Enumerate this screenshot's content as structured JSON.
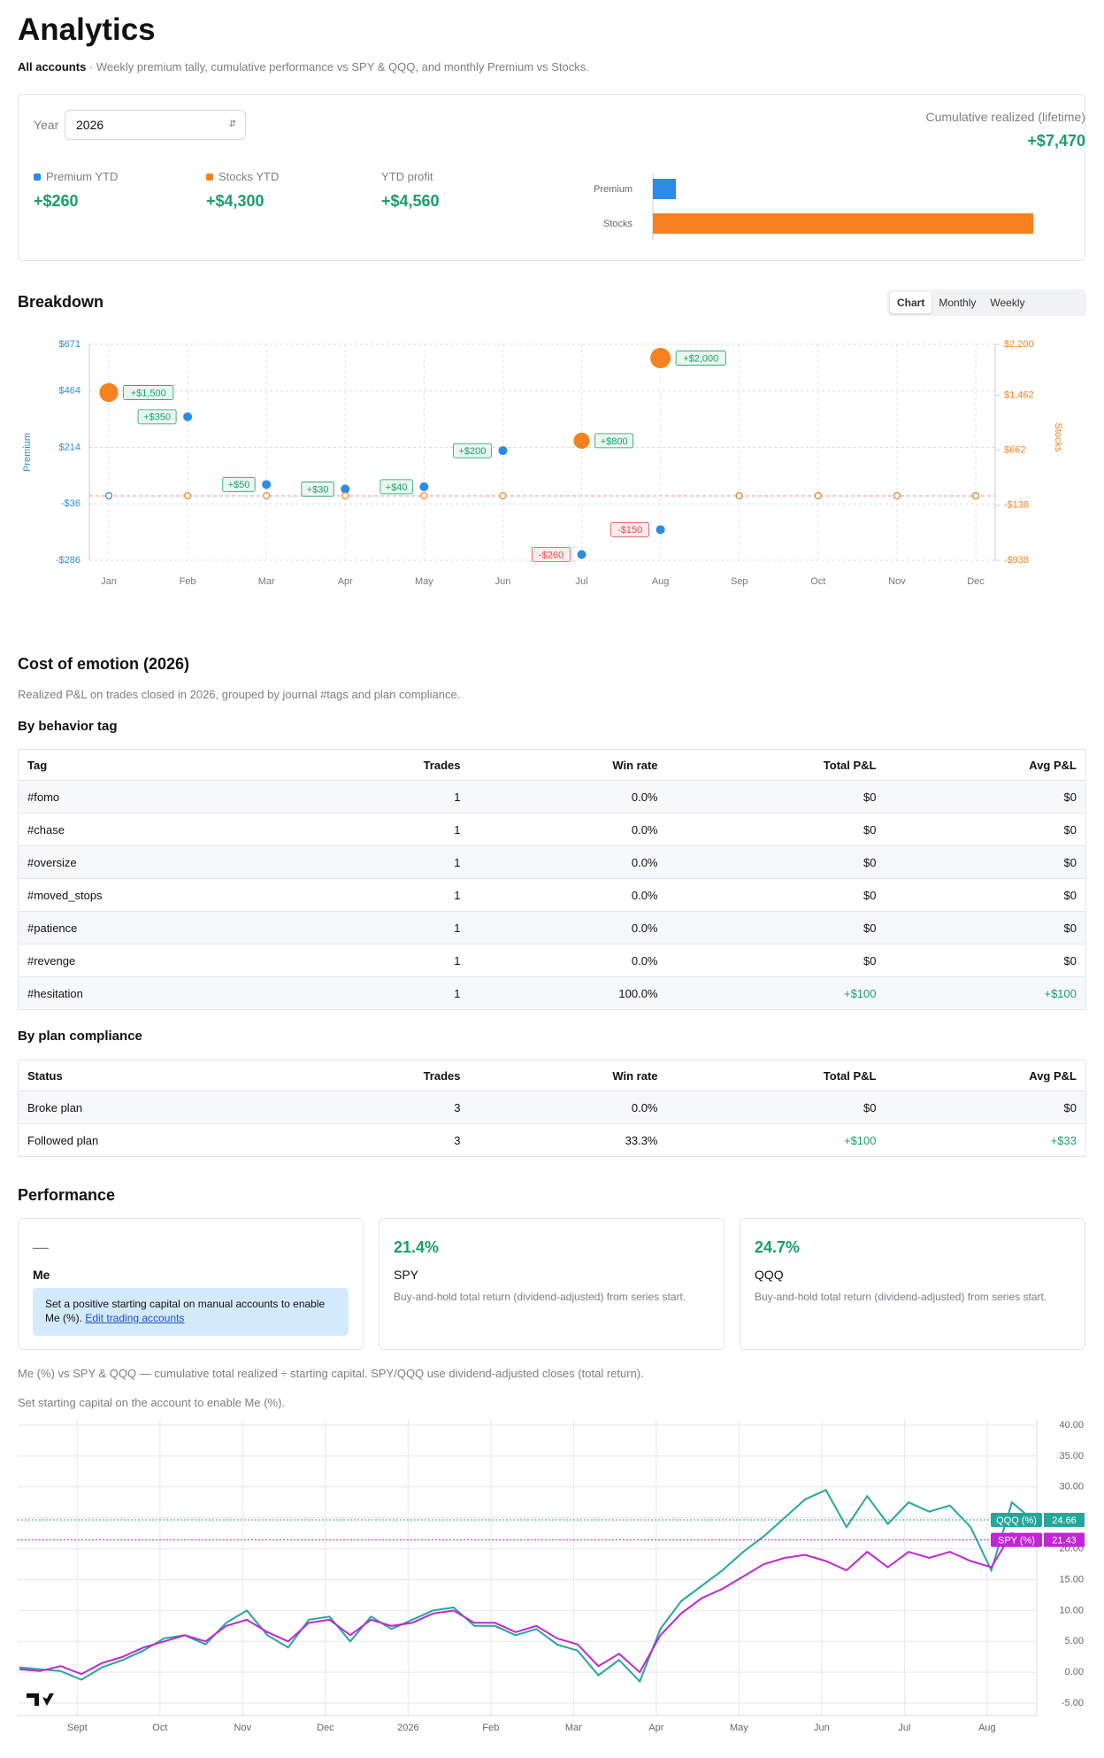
{
  "header": {
    "title": "Analytics",
    "scope": "All accounts",
    "description": "· Weekly premium tally, cumulative performance vs SPY & QQQ, and monthly Premium vs Stocks."
  },
  "summary": {
    "year_label": "Year",
    "year": "2026",
    "cumulative_label": "Cumulative realized (lifetime)",
    "cumulative": "+$7,470",
    "stats": [
      {
        "label": "Premium YTD",
        "value": "+$260",
        "color": "#2b8be6"
      },
      {
        "label": "Stocks YTD",
        "value": "+$4,300",
        "color": "#f5821f"
      },
      {
        "label": "YTD profit",
        "value": "+$4,560"
      }
    ],
    "chart": {
      "type": "bar",
      "orientation": "horizontal",
      "categories": [
        "Premium",
        "Stocks"
      ],
      "values": [
        260,
        4300
      ],
      "colors": [
        "#2b8be6",
        "#f5821f"
      ]
    }
  },
  "breakdown": {
    "title": "Breakdown",
    "tabs": [
      "Chart",
      "Monthly",
      "Weekly"
    ],
    "active_tab": 0,
    "chart": {
      "type": "scatter",
      "categories": [
        "Jan",
        "Feb",
        "Mar",
        "Apr",
        "May",
        "Jun",
        "Jul",
        "Aug",
        "Sep",
        "Oct",
        "Nov",
        "Dec"
      ],
      "series": [
        {
          "name": "Premium",
          "color": "#2b8be6",
          "values": [
            0,
            350,
            50,
            30,
            40,
            200,
            -260,
            -150,
            0,
            0,
            0,
            0
          ],
          "value_labels": [
            null,
            "+$350",
            "+$50",
            "+$30",
            "+$40",
            "+$200",
            "-$260",
            "-$150",
            null,
            null,
            null,
            null
          ]
        },
        {
          "name": "Stocks",
          "axis": "y2",
          "color": "#f5821f",
          "values": [
            1500,
            0,
            0,
            0,
            0,
            0,
            800,
            2000,
            0,
            0,
            0,
            0
          ],
          "value_labels": [
            "+$1,500",
            null,
            null,
            null,
            null,
            null,
            "+$800",
            "+$2,000",
            null,
            null,
            null,
            null
          ]
        }
      ],
      "ylabel": "Premium",
      "y2label": "Stocks",
      "ylim": [
        -286,
        671
      ],
      "yticks": [
        {
          "value": -286,
          "label": "-$286"
        },
        {
          "value": -36,
          "label": "-$36"
        },
        {
          "value": 214,
          "label": "$214"
        },
        {
          "value": 464,
          "label": "$464"
        },
        {
          "value": 671,
          "label": "$671"
        }
      ],
      "y2lim": [
        -938,
        2200
      ],
      "y2ticks": [
        {
          "value": -938,
          "label": "-$938"
        },
        {
          "value": -138,
          "label": "-$138"
        },
        {
          "value": 662,
          "label": "$662"
        },
        {
          "value": 1462,
          "label": "$1,462"
        },
        {
          "value": 2200,
          "label": "$2,200"
        }
      ],
      "grid": true
    }
  },
  "emotion": {
    "title": "Cost of emotion (2026)",
    "description": "Realized P&L on trades closed in 2026, grouped by journal #tags and plan compliance.",
    "tables": [
      {
        "title": "By behavior tag",
        "columns": [
          "Tag",
          "Trades",
          "Win rate",
          "Total P&L",
          "Avg P&L"
        ],
        "rows": [
          [
            "#fomo",
            "1",
            "0.0%",
            "$0",
            "$0"
          ],
          [
            "#chase",
            "1",
            "0.0%",
            "$0",
            "$0"
          ],
          [
            "#oversize",
            "1",
            "0.0%",
            "$0",
            "$0"
          ],
          [
            "#moved_stops",
            "1",
            "0.0%",
            "$0",
            "$0"
          ],
          [
            "#patience",
            "1",
            "0.0%",
            "$0",
            "$0"
          ],
          [
            "#revenge",
            "1",
            "0.0%",
            "$0",
            "$0"
          ],
          [
            "#hesitation",
            "1",
            "100.0%",
            "+$100",
            "+$100"
          ]
        ]
      },
      {
        "title": "By plan compliance",
        "columns": [
          "Status",
          "Trades",
          "Win rate",
          "Total P&L",
          "Avg P&L"
        ],
        "rows": [
          [
            "Broke plan",
            "3",
            "0.0%",
            "$0",
            "$0"
          ],
          [
            "Followed plan",
            "3",
            "33.3%",
            "+$100",
            "+$33"
          ]
        ]
      }
    ]
  },
  "performance": {
    "title": "Performance",
    "cards": [
      {
        "value": "—",
        "name": "Me",
        "notice": "Set a positive starting capital on manual accounts to enable Me (%).",
        "link": "Edit trading accounts"
      },
      {
        "value": "21.4%",
        "name": "SPY",
        "description": "Buy-and-hold total return (dividend-adjusted) from series start."
      },
      {
        "value": "24.7%",
        "name": "QQQ",
        "description": "Buy-and-hold total return (dividend-adjusted) from series start."
      }
    ],
    "notes": [
      "Me (%) vs SPY & QQQ — cumulative total realized ÷ starting capital. SPY/QQQ use dividend-adjusted closes (total return).",
      "Set starting capital on the account to enable Me (%)."
    ],
    "chart": {
      "type": "line",
      "x": [
        0.3,
        0.55,
        0.8,
        1.05,
        1.3,
        1.55,
        1.8,
        2.05,
        2.3,
        2.55,
        2.8,
        3.05,
        3.3,
        3.55,
        3.8,
        4.05,
        4.3,
        4.55,
        4.8,
        5.05,
        5.3,
        5.55,
        5.8,
        6.05,
        6.3,
        6.55,
        6.8,
        7.05,
        7.3,
        7.55,
        7.8,
        8.05,
        8.3,
        8.55,
        8.8,
        9.05,
        9.3,
        9.55,
        9.8,
        10.05,
        10.3,
        10.55,
        10.8,
        11.05,
        11.3,
        11.55,
        11.8,
        12.05,
        12.3,
        12.55
      ],
      "series": [
        {
          "name": "QQQ (%)",
          "color": "#26a69a",
          "values": [
            0.8,
            0.5,
            0.2,
            -1.2,
            0.8,
            2.0,
            3.5,
            5.5,
            6.0,
            4.5,
            8.0,
            10.0,
            6.0,
            4.0,
            8.5,
            9.0,
            5.0,
            9.0,
            7.0,
            8.5,
            10.0,
            10.5,
            7.5,
            7.5,
            6.0,
            7.0,
            4.5,
            3.5,
            -0.5,
            2.0,
            -1.5,
            7.0,
            11.5,
            14.0,
            16.5,
            19.5,
            22.0,
            25.0,
            28.0,
            29.5,
            23.5,
            28.5,
            24.0,
            27.5,
            26.0,
            27.0,
            23.5,
            16.5,
            27.5,
            24.66
          ]
        },
        {
          "name": "SPY (%)",
          "color": "#c026d3",
          "values": [
            0.5,
            0.2,
            1.0,
            -0.3,
            1.5,
            2.5,
            4.0,
            5.0,
            6.0,
            5.0,
            7.5,
            8.5,
            6.5,
            5.0,
            8.0,
            8.5,
            6.0,
            8.5,
            7.5,
            8.0,
            9.5,
            10.0,
            8.0,
            8.0,
            6.5,
            7.5,
            5.5,
            4.5,
            1.0,
            3.0,
            0.0,
            6.0,
            9.5,
            12.0,
            13.5,
            15.5,
            17.5,
            18.5,
            19.0,
            18.0,
            16.5,
            19.5,
            17.0,
            19.5,
            18.5,
            19.5,
            18.0,
            17.0,
            22.5,
            21.43
          ]
        }
      ],
      "xlim": [
        0.28,
        12.6
      ],
      "xticks": [
        {
          "value": 1,
          "label": "Sept"
        },
        {
          "value": 2,
          "label": "Oct"
        },
        {
          "value": 3,
          "label": "Nov"
        },
        {
          "value": 4,
          "label": "Dec"
        },
        {
          "value": 5,
          "label": "2026"
        },
        {
          "value": 6,
          "label": "Feb"
        },
        {
          "value": 7,
          "label": "Mar"
        },
        {
          "value": 8,
          "label": "Apr"
        },
        {
          "value": 9,
          "label": "May"
        },
        {
          "value": 10,
          "label": "Jun"
        },
        {
          "value": 11,
          "label": "Jul"
        },
        {
          "value": 12,
          "label": "Aug"
        }
      ],
      "ylim": [
        -7,
        41
      ],
      "yticks": [
        {
          "value": -5,
          "label": "-5.00"
        },
        {
          "value": 0,
          "label": "0.00"
        },
        {
          "value": 5,
          "label": "5.00"
        },
        {
          "value": 10,
          "label": "10.00"
        },
        {
          "value": 15,
          "label": "15.00"
        },
        {
          "value": 20,
          "label": "20.00"
        },
        {
          "value": 25,
          "label": "25.00"
        },
        {
          "value": 30,
          "label": "30.00"
        },
        {
          "value": 35,
          "label": "35.00"
        },
        {
          "value": 40,
          "label": "40.00"
        }
      ],
      "grid": true
    }
  }
}
